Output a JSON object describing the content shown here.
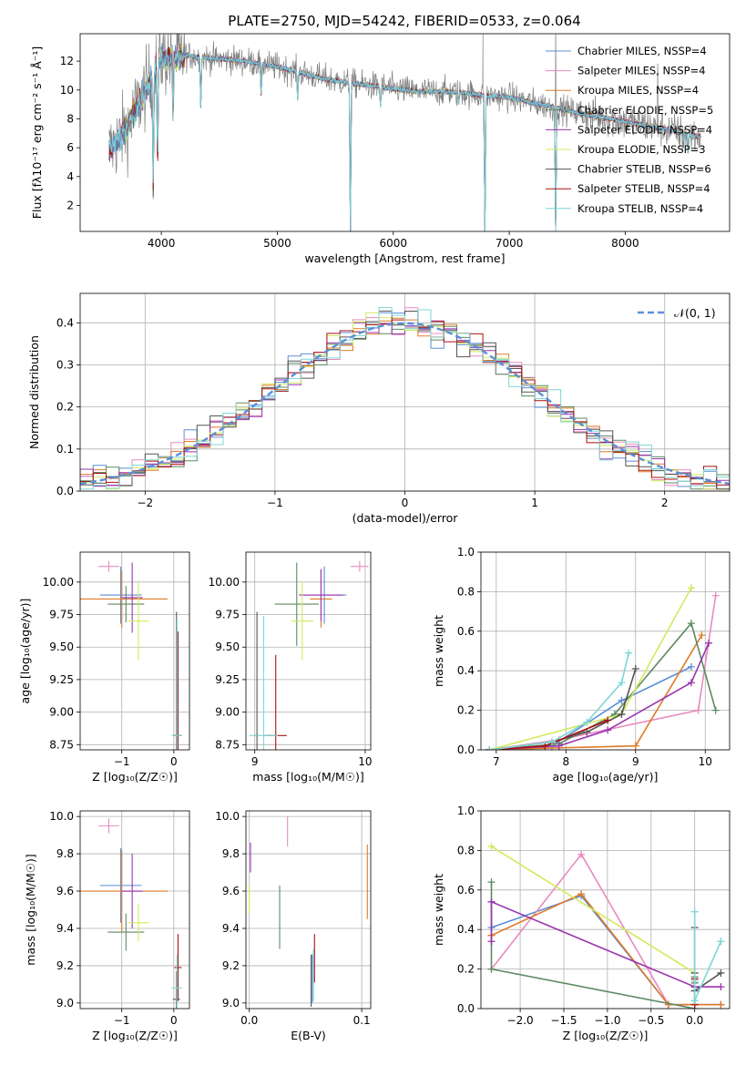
{
  "figure_title": "PLATE=2750, MJD=54242, FIBERID=0533, z=0.064",
  "series_colors": [
    "#5b8ed6",
    "#e88bbf",
    "#e07b28",
    "#5c8a62",
    "#9a33b0",
    "#d2ea5b",
    "#555555",
    "#aa1111",
    "#7fd6d6"
  ],
  "chart_data": [
    {
      "id": "spectrum",
      "type": "line",
      "xlabel": "wavelength [Angstrom, rest frame]",
      "ylabel": "Flux [fλ10⁻¹⁷ erg cm⁻² s⁻¹ Å⁻¹]",
      "xlim": [
        3300,
        8900
      ],
      "ylim": [
        0.2,
        13.9
      ],
      "xticks": [
        4000,
        5000,
        6000,
        7000,
        8000
      ],
      "yticks": [
        2,
        4,
        6,
        8,
        10,
        12
      ],
      "legend_position": "upper-right",
      "legend": [
        "Chabrier MILES, NSSP=4",
        "Salpeter MILES, NSSP=4",
        "Kroupa MILES, NSSP=4",
        "Chabrier ELODIE, NSSP=5",
        "Salpeter ELODIE, NSSP=4",
        "Kroupa ELODIE, NSSP=3",
        "Chabrier STELIB, NSSP=6",
        "Salpeter STELIB, NSSP=4",
        "Kroupa STELIB, NSSP=4"
      ],
      "continuum": {
        "x": [
          3550,
          3600,
          3700,
          3800,
          3900,
          4000,
          4200,
          4400,
          4600,
          4800,
          5000,
          5200,
          5400,
          5600,
          5800,
          6000,
          6200,
          6400,
          6600,
          6800,
          7000,
          7200,
          7400,
          7600,
          7800,
          8000,
          8200,
          8400,
          8600
        ],
        "y": [
          5.8,
          6.3,
          7.3,
          9.0,
          10.6,
          12.2,
          12.4,
          12.2,
          12.1,
          11.9,
          11.6,
          11.2,
          10.8,
          10.5,
          10.3,
          10.1,
          9.9,
          9.9,
          9.8,
          9.6,
          9.5,
          9.1,
          8.8,
          8.4,
          8.1,
          7.8,
          7.5,
          7.2,
          6.8
        ]
      },
      "absorption_features": [
        {
          "x": 3930,
          "y": 3.1
        },
        {
          "x": 3968,
          "y": 4.7
        },
        {
          "x": 4101,
          "y": 8.2
        },
        {
          "x": 4340,
          "y": 8.9
        },
        {
          "x": 4861,
          "y": 9.7
        },
        {
          "x": 5175,
          "y": 9.4
        },
        {
          "x": 5630,
          "y": 0.2
        },
        {
          "x": 5890,
          "y": 8.9
        },
        {
          "x": 6563,
          "y": 9.0
        },
        {
          "x": 6790,
          "y": 0.2
        },
        {
          "x": 7400,
          "y": 0.2
        },
        {
          "x": 8498,
          "y": 6.4
        },
        {
          "x": 8542,
          "y": 5.6
        },
        {
          "x": 8662,
          "y": 6.0
        }
      ],
      "data_spikes": [
        {
          "x": 6775,
          "y": 13.9
        },
        {
          "x": 7400,
          "y": 13.9
        },
        {
          "x": 8280,
          "y": 11.8
        }
      ]
    },
    {
      "id": "residuals",
      "type": "histogram",
      "xlabel": "(data-model)/error",
      "ylabel": "Normed distribution",
      "xlim": [
        -2.5,
        2.5
      ],
      "ylim": [
        0,
        0.47
      ],
      "xticks": [
        -2,
        -1,
        0,
        1,
        2
      ],
      "yticks": [
        0.0,
        0.1,
        0.2,
        0.3,
        0.4
      ],
      "bin_width": 0.1,
      "legend_position": "upper-right",
      "reference_curve": {
        "label": "𝒩(0, 1)",
        "mean": 0,
        "sigma": 1
      }
    },
    {
      "id": "age_vs_Z",
      "type": "errorbar",
      "xlabel": "Z [log₁₀(Z/Z☉)]",
      "ylabel": "age  [log₁₀(age/yr)]",
      "xlim": [
        -1.8,
        0.3
      ],
      "ylim": [
        8.71,
        10.23
      ],
      "xticks": [
        -1,
        0
      ],
      "yticks": [
        8.75,
        9.0,
        9.25,
        9.5,
        9.75,
        10.0
      ],
      "points": [
        {
          "s": 0,
          "x": -1.02,
          "xe": 0.4,
          "y": 9.9,
          "ye": 0.22
        },
        {
          "s": 1,
          "x": -1.25,
          "xe": 0.2,
          "y": 10.12,
          "ye": 0.04
        },
        {
          "s": 2,
          "x": -1.0,
          "xe": 0.88,
          "y": 9.87,
          "ye": 0.22
        },
        {
          "s": 3,
          "x": -0.92,
          "xe": 0.35,
          "y": 9.83,
          "ye": 0.14
        },
        {
          "s": 4,
          "x": -0.8,
          "xe": 0.2,
          "y": 9.88,
          "ye": 0.27
        },
        {
          "s": 5,
          "x": -0.68,
          "xe": 0.2,
          "y": 9.7,
          "ye": 0.3
        },
        {
          "s": 6,
          "x": 0.05,
          "xe": 0.07,
          "y": 8.82,
          "ye": 0.95
        },
        {
          "s": 7,
          "x": 0.08,
          "xe": 0.07,
          "y": 8.82,
          "ye": 0.8
        },
        {
          "s": 8,
          "x": 0.06,
          "xe": 0.1,
          "y": 8.82,
          "ye": 0.9
        }
      ]
    },
    {
      "id": "age_vs_mass",
      "type": "errorbar",
      "xlabel": "mass [log₁₀(M/M☉)]",
      "ylabel": "",
      "xlim": [
        8.92,
        10.05
      ],
      "ylim": [
        8.71,
        10.23
      ],
      "xticks": [
        9,
        10
      ],
      "yticks": [
        8.75,
        9.0,
        9.25,
        9.5,
        9.75,
        10.0
      ],
      "points": [
        {
          "s": 0,
          "x": 9.63,
          "xe": 0.2,
          "y": 9.9,
          "ye": 0.22
        },
        {
          "s": 1,
          "x": 9.95,
          "xe": 0.08,
          "y": 10.12,
          "ye": 0.04
        },
        {
          "s": 2,
          "x": 9.6,
          "xe": 0.1,
          "y": 9.87,
          "ye": 0.22
        },
        {
          "s": 3,
          "x": 9.38,
          "xe": 0.2,
          "y": 9.83,
          "ye": 0.32
        },
        {
          "s": 4,
          "x": 9.6,
          "xe": 0.2,
          "y": 9.9,
          "ye": 0.2
        },
        {
          "s": 5,
          "x": 9.43,
          "xe": 0.1,
          "y": 9.7,
          "ye": 0.3
        },
        {
          "s": 6,
          "x": 9.02,
          "xe": 0.02,
          "y": 8.82,
          "ye": 0.95
        },
        {
          "s": 7,
          "x": 9.19,
          "xe": 0.1,
          "y": 8.82,
          "ye": 0.62
        },
        {
          "s": 8,
          "x": 9.08,
          "xe": 0.13,
          "y": 8.82,
          "ye": 0.92
        }
      ]
    },
    {
      "id": "weight_vs_age",
      "type": "line",
      "xlabel": "age  [log₁₀(age/yr)]",
      "ylabel": "mass weight",
      "xlim": [
        6.78,
        10.35
      ],
      "ylim": [
        0,
        1
      ],
      "xticks": [
        7,
        8,
        9,
        10
      ],
      "yticks": [
        0.0,
        0.2,
        0.4,
        0.6,
        0.8,
        1.0
      ],
      "series": [
        {
          "s": 0,
          "x": [
            6.9,
            7.8,
            8.8,
            9.8
          ],
          "y": [
            0,
            0.02,
            0.25,
            0.42
          ]
        },
        {
          "s": 1,
          "x": [
            6.9,
            7.9,
            9.9,
            10.15
          ],
          "y": [
            0,
            0.05,
            0.2,
            0.78
          ]
        },
        {
          "s": 2,
          "x": [
            6.9,
            7.9,
            9.0,
            9.95
          ],
          "y": [
            0,
            0.01,
            0.02,
            0.58
          ]
        },
        {
          "s": 3,
          "x": [
            6.9,
            7.9,
            8.7,
            9.8,
            10.15
          ],
          "y": [
            0,
            0.03,
            0.18,
            0.64,
            0.2
          ]
        },
        {
          "s": 4,
          "x": [
            6.9,
            7.9,
            8.6,
            9.8,
            10.05
          ],
          "y": [
            0,
            0.02,
            0.1,
            0.34,
            0.54
          ]
        },
        {
          "s": 5,
          "x": [
            6.9,
            8.8,
            9.8
          ],
          "y": [
            0,
            0.18,
            0.82
          ]
        },
        {
          "s": 6,
          "x": [
            6.9,
            7.8,
            8.3,
            8.8,
            9.0
          ],
          "y": [
            0,
            0.04,
            0.09,
            0.18,
            0.41
          ]
        },
        {
          "s": 7,
          "x": [
            6.9,
            7.7,
            8.6
          ],
          "y": [
            0,
            0.02,
            0.15
          ]
        },
        {
          "s": 8,
          "x": [
            6.9,
            7.8,
            8.3,
            8.8,
            8.9
          ],
          "y": [
            0,
            0.04,
            0.14,
            0.34,
            0.49
          ]
        }
      ]
    },
    {
      "id": "mass_vs_Z",
      "type": "errorbar",
      "xlabel": "Z [log₁₀(Z/Z☉)]",
      "ylabel": "mass [log₁₀(M/M☉)]",
      "xlim": [
        -1.8,
        0.3
      ],
      "ylim": [
        8.97,
        10.03
      ],
      "xticks": [
        -1,
        0
      ],
      "yticks": [
        9.0,
        9.2,
        9.4,
        9.6,
        9.8,
        10.0
      ],
      "points": [
        {
          "s": 0,
          "x": -1.02,
          "xe": 0.4,
          "y": 9.63,
          "ye": 0.2
        },
        {
          "s": 1,
          "x": -1.25,
          "xe": 0.2,
          "y": 9.95,
          "ye": 0.04
        },
        {
          "s": 2,
          "x": -1.0,
          "xe": 0.88,
          "y": 9.6,
          "ye": 0.22
        },
        {
          "s": 3,
          "x": -0.92,
          "xe": 0.35,
          "y": 9.38,
          "ye": 0.1
        },
        {
          "s": 4,
          "x": -0.8,
          "xe": 0.2,
          "y": 9.6,
          "ye": 0.2
        },
        {
          "s": 5,
          "x": -0.68,
          "xe": 0.2,
          "y": 9.43,
          "ye": 0.1
        },
        {
          "s": 6,
          "x": 0.05,
          "xe": 0.07,
          "y": 9.02,
          "ye": 0.15
        },
        {
          "s": 7,
          "x": 0.08,
          "xe": 0.07,
          "y": 9.19,
          "ye": 0.18
        },
        {
          "s": 8,
          "x": 0.06,
          "xe": 0.1,
          "y": 9.08,
          "ye": 0.18
        }
      ]
    },
    {
      "id": "mass_vs_EBV",
      "type": "errorbar",
      "xlabel": "E(B-V)",
      "ylabel": "",
      "xlim": [
        -0.003,
        0.108
      ],
      "ylim": [
        8.97,
        10.03
      ],
      "xticks": [
        0.0,
        0.1
      ],
      "yticks": [
        9.0,
        9.2,
        9.4,
        9.6,
        9.8,
        10.0
      ],
      "points": [
        {
          "s": 0,
          "x": 0.056,
          "xe": 0,
          "y": 9.13,
          "ye": 0.13
        },
        {
          "s": 1,
          "x": 0.034,
          "xe": 0,
          "y": 9.92,
          "ye": 0.08
        },
        {
          "s": 2,
          "x": 0.105,
          "xe": 0,
          "y": 9.65,
          "ye": 0.2
        },
        {
          "s": 3,
          "x": 0.027,
          "xe": 0,
          "y": 9.46,
          "ye": 0.17
        },
        {
          "s": 4,
          "x": 0.001,
          "xe": 0,
          "y": 9.78,
          "ye": 0.08
        },
        {
          "s": 5,
          "x": 0.0,
          "xe": 0,
          "y": 9.56,
          "ye": 0.08
        },
        {
          "s": 6,
          "x": 0.055,
          "xe": 0,
          "y": 9.12,
          "ye": 0.14
        },
        {
          "s": 7,
          "x": 0.058,
          "xe": 0,
          "y": 9.24,
          "ye": 0.13
        },
        {
          "s": 8,
          "x": 0.057,
          "xe": 0,
          "y": 9.15,
          "ye": 0.14
        }
      ]
    },
    {
      "id": "weight_vs_Z",
      "type": "line",
      "xlabel": "Z [log₁₀(Z/Z☉)]",
      "ylabel": "mass weight",
      "xlim": [
        -2.45,
        0.4
      ],
      "ylim": [
        0,
        1
      ],
      "xticks": [
        -2.0,
        -1.5,
        -1.0,
        -0.5,
        0.0
      ],
      "yticks": [
        0.0,
        0.2,
        0.4,
        0.6,
        0.8,
        1.0
      ],
      "series": [
        {
          "s": 0,
          "x": [
            -2.33,
            -1.3,
            -0.3,
            0.0,
            0.3
          ],
          "y": [
            0.41,
            0.57,
            0.02,
            0.02,
            0.02
          ]
        },
        {
          "s": 1,
          "x": [
            -2.33,
            -1.3,
            -0.3,
            0.0,
            0.3
          ],
          "y": [
            0.2,
            0.78,
            0.02,
            0.02,
            0.02
          ]
        },
        {
          "s": 2,
          "x": [
            -2.33,
            -1.3,
            -0.3,
            0.0,
            0.3
          ],
          "y": [
            0.37,
            0.58,
            0.02,
            0.02,
            0.02
          ]
        },
        {
          "s": 3,
          "x": [
            -2.33,
            -2.33,
            0.0,
            0.0,
            0.0
          ],
          "y": [
            0.64,
            0.2,
            0.0,
            0.13,
            0.16
          ]
        },
        {
          "s": 4,
          "x": [
            -2.33,
            -2.33,
            0.0,
            0.0,
            0.3
          ],
          "y": [
            0.34,
            0.54,
            0.11,
            0.11,
            0.11
          ]
        },
        {
          "s": 5,
          "x": [
            -2.33,
            0.0
          ],
          "y": [
            0.82,
            0.18
          ]
        },
        {
          "s": 6,
          "x": [
            0.0,
            0.0,
            0.0,
            0.0,
            0.3
          ],
          "y": [
            0.41,
            0.18,
            0.09,
            0.09,
            0.18
          ]
        },
        {
          "s": 7,
          "x": [
            0.0,
            0.0
          ],
          "y": [
            0.15,
            0.02
          ]
        },
        {
          "s": 8,
          "x": [
            0.0,
            0.0,
            0.0,
            0.3,
            0.3
          ],
          "y": [
            0.49,
            0.14,
            0.04,
            0.34,
            0.34
          ]
        }
      ]
    }
  ]
}
